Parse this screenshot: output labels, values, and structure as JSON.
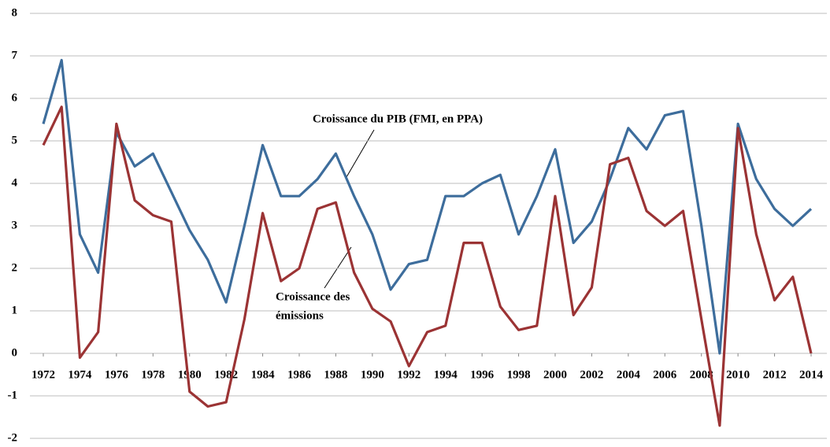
{
  "chart_data": {
    "type": "line",
    "x": [
      1972,
      1973,
      1974,
      1975,
      1976,
      1977,
      1978,
      1979,
      1980,
      1981,
      1982,
      1983,
      1984,
      1985,
      1986,
      1987,
      1988,
      1989,
      1990,
      1991,
      1992,
      1993,
      1994,
      1995,
      1996,
      1997,
      1998,
      1999,
      2000,
      2001,
      2002,
      2003,
      2004,
      2005,
      2006,
      2007,
      2008,
      2009,
      2010,
      2011,
      2012,
      2013,
      2014
    ],
    "series": [
      {
        "color": "#3d6d9c",
        "values": [
          5.4,
          6.9,
          2.8,
          1.9,
          5.2,
          4.4,
          4.7,
          3.8,
          2.9,
          2.2,
          1.2,
          3.0,
          4.9,
          3.7,
          3.7,
          4.1,
          4.7,
          3.7,
          2.8,
          1.5,
          2.1,
          2.2,
          3.7,
          3.7,
          4.0,
          4.2,
          2.8,
          3.7,
          4.8,
          2.6,
          3.1,
          4.1,
          5.3,
          4.8,
          5.6,
          5.7,
          3.0,
          0.0,
          5.4,
          4.1,
          3.4,
          3.0,
          3.4
        ]
      },
      {
        "color": "#9b3334",
        "values": [
          4.9,
          5.8,
          -0.1,
          0.5,
          5.4,
          3.6,
          3.25,
          3.1,
          -0.9,
          -1.25,
          -1.15,
          0.8,
          3.3,
          1.7,
          2.0,
          3.4,
          3.55,
          1.9,
          1.05,
          0.75,
          -0.3,
          0.5,
          0.65,
          2.6,
          2.6,
          1.1,
          0.55,
          0.65,
          3.7,
          0.9,
          1.55,
          4.45,
          4.6,
          3.35,
          3.0,
          3.35,
          0.8,
          -1.7,
          5.3,
          2.8,
          1.25,
          1.8,
          0.0
        ]
      }
    ],
    "xlim": [
      1972,
      2014
    ],
    "xticks": [
      1972,
      1974,
      1976,
      1978,
      1980,
      1982,
      1984,
      1986,
      1988,
      1990,
      1992,
      1994,
      1996,
      1998,
      2000,
      2002,
      2004,
      2006,
      2008,
      2010,
      2012,
      2014
    ],
    "ylim": [
      -2,
      8
    ],
    "yticks": [
      -2,
      -1,
      0,
      1,
      2,
      3,
      4,
      5,
      6,
      7,
      8
    ],
    "grid": true,
    "annotations": [
      {
        "lines": [
          "Croissance du PIB (FMI, en PPA)"
        ]
      },
      {
        "lines": [
          "Croissance des",
          "émissions"
        ]
      }
    ]
  }
}
